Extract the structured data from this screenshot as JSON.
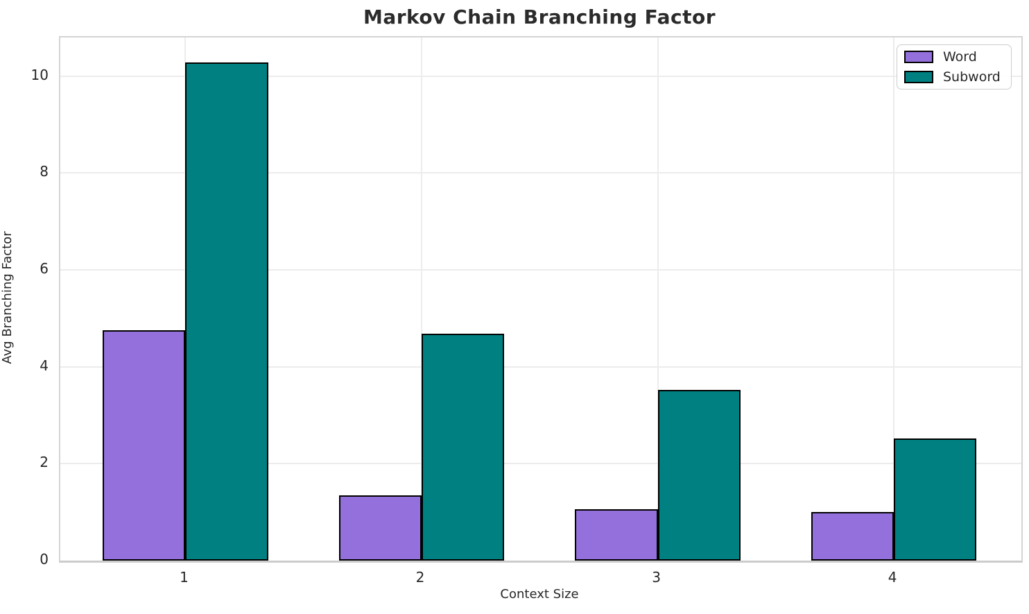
{
  "chart_data": {
    "type": "bar",
    "title": "Markov Chain Branching Factor",
    "xlabel": "Context Size",
    "ylabel": "Avg Branching Factor",
    "categories": [
      "1",
      "2",
      "3",
      "4"
    ],
    "series": [
      {
        "name": "Word",
        "color": "#9370DB",
        "values": [
          4.75,
          1.35,
          1.06,
          1.0
        ]
      },
      {
        "name": "Subword",
        "color": "#008080",
        "values": [
          10.28,
          4.68,
          3.52,
          2.52
        ]
      }
    ],
    "ylim": [
      0,
      10.8
    ],
    "xlim": [
      0.47,
      4.54
    ],
    "yticks": [
      0,
      2,
      4,
      6,
      8,
      10
    ],
    "bar_width": 0.35,
    "bar_edge_color": "#000000",
    "grid": true,
    "grid_color": "#ececec",
    "legend_position": "upper right",
    "text_color": "#262626"
  }
}
